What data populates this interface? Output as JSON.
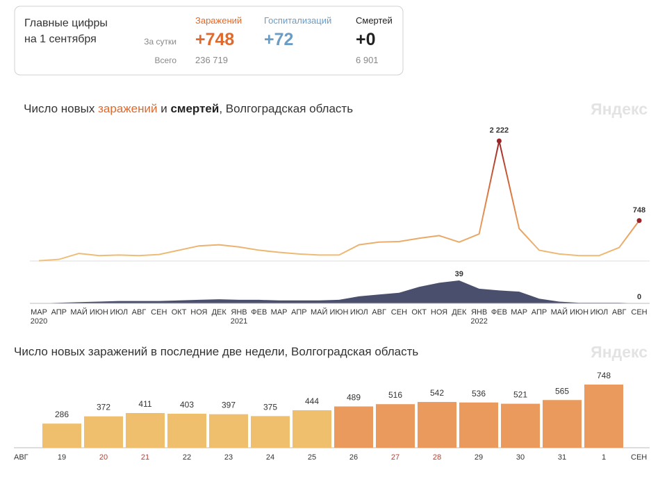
{
  "header": {
    "title_lines": [
      "Главные цифры",
      "на 1 сентября"
    ],
    "row_labels": [
      "За сутки",
      "Всего"
    ],
    "columns": [
      {
        "name": "Заражений",
        "color": "#e0692b",
        "daily": "+748",
        "total": "236 719"
      },
      {
        "name": "Госпитализаций",
        "color": "#6b9cc4",
        "daily": "+72"
      },
      {
        "name": "Смертей",
        "color": "#222222",
        "daily": "+0",
        "total": "6 901"
      }
    ]
  },
  "chart_data": [
    {
      "type": "line",
      "watermark": "Яндекс",
      "title_parts": [
        "Число новых ",
        " и ",
        ", Волгоградская область"
      ],
      "categories": [
        "МАР",
        "АПР",
        "МАЙ",
        "ИЮН",
        "ИЮЛ",
        "АВГ",
        "СЕН",
        "ОКТ",
        "НОЯ",
        "ДЕК",
        "ЯНВ",
        "ФЕВ",
        "МАР",
        "АПР",
        "МАЙ",
        "ИЮН",
        "ИЮЛ",
        "АВГ",
        "СЕН",
        "ОКТ",
        "НОЯ",
        "ДЕК",
        "ЯНВ",
        "ФЕВ",
        "МАР",
        "АПР",
        "МАЙ",
        "ИЮН",
        "ИЮЛ",
        "АВГ",
        "СЕН"
      ],
      "year_labels": [
        "2020",
        null,
        null,
        null,
        null,
        null,
        null,
        null,
        null,
        null,
        "2021",
        null,
        null,
        null,
        null,
        null,
        null,
        null,
        null,
        null,
        null,
        null,
        "2022",
        null,
        null,
        null,
        null,
        null,
        null,
        null,
        null
      ],
      "series": [
        {
          "name": "заражений",
          "color": "#e9a54f",
          "marker_color": "#9b2226",
          "values": [
            5,
            30,
            140,
            100,
            110,
            100,
            120,
            200,
            280,
            300,
            260,
            200,
            160,
            130,
            110,
            110,
            300,
            350,
            360,
            420,
            470,
            350,
            500,
            2222,
            600,
            200,
            130,
            100,
            100,
            250,
            748
          ],
          "value_labels": [
            null,
            null,
            null,
            null,
            null,
            null,
            null,
            null,
            null,
            null,
            null,
            null,
            null,
            null,
            null,
            null,
            null,
            null,
            null,
            null,
            null,
            null,
            null,
            "2 222",
            null,
            null,
            null,
            null,
            null,
            null,
            "748"
          ]
        },
        {
          "name": "смертей",
          "color": "#4b4f6e",
          "title_color": "#222222",
          "values": [
            0,
            1,
            2,
            3,
            4,
            4,
            4,
            5,
            6,
            7,
            6,
            6,
            5,
            5,
            5,
            6,
            12,
            15,
            18,
            28,
            35,
            39,
            25,
            22,
            20,
            8,
            3,
            1,
            1,
            1,
            0
          ],
          "value_labels": [
            null,
            null,
            null,
            null,
            null,
            null,
            null,
            null,
            null,
            null,
            null,
            null,
            null,
            null,
            null,
            null,
            null,
            null,
            null,
            null,
            null,
            "39",
            null,
            null,
            null,
            null,
            null,
            null,
            null,
            null,
            "0"
          ]
        }
      ]
    },
    {
      "type": "bar",
      "watermark": "Яндекс",
      "title": "Число новых заражений в последние две недели, Волгоградская область",
      "categories": [
        "19",
        "20",
        "21",
        "22",
        "23",
        "24",
        "25",
        "26",
        "27",
        "28",
        "29",
        "30",
        "31",
        "1"
      ],
      "values": [
        286,
        372,
        411,
        403,
        397,
        375,
        444,
        489,
        516,
        542,
        536,
        521,
        565,
        748
      ],
      "colors": [
        "#efbf6e",
        "#efbf6e",
        "#efbf6e",
        "#efbf6e",
        "#efbf6e",
        "#efbf6e",
        "#efbf6e",
        "#e99a5c",
        "#e99a5c",
        "#e99a5c",
        "#e99a5c",
        "#e99a5c",
        "#e99a5c",
        "#e99a5c"
      ],
      "label_colors": [
        "#333333",
        "#c0392b",
        "#c0392b",
        "#333333",
        "#333333",
        "#333333",
        "#333333",
        "#333333",
        "#c0392b",
        "#c0392b",
        "#333333",
        "#333333",
        "#333333",
        "#333333"
      ],
      "x_edge_labels": [
        "АВГ",
        "СЕН"
      ]
    }
  ]
}
